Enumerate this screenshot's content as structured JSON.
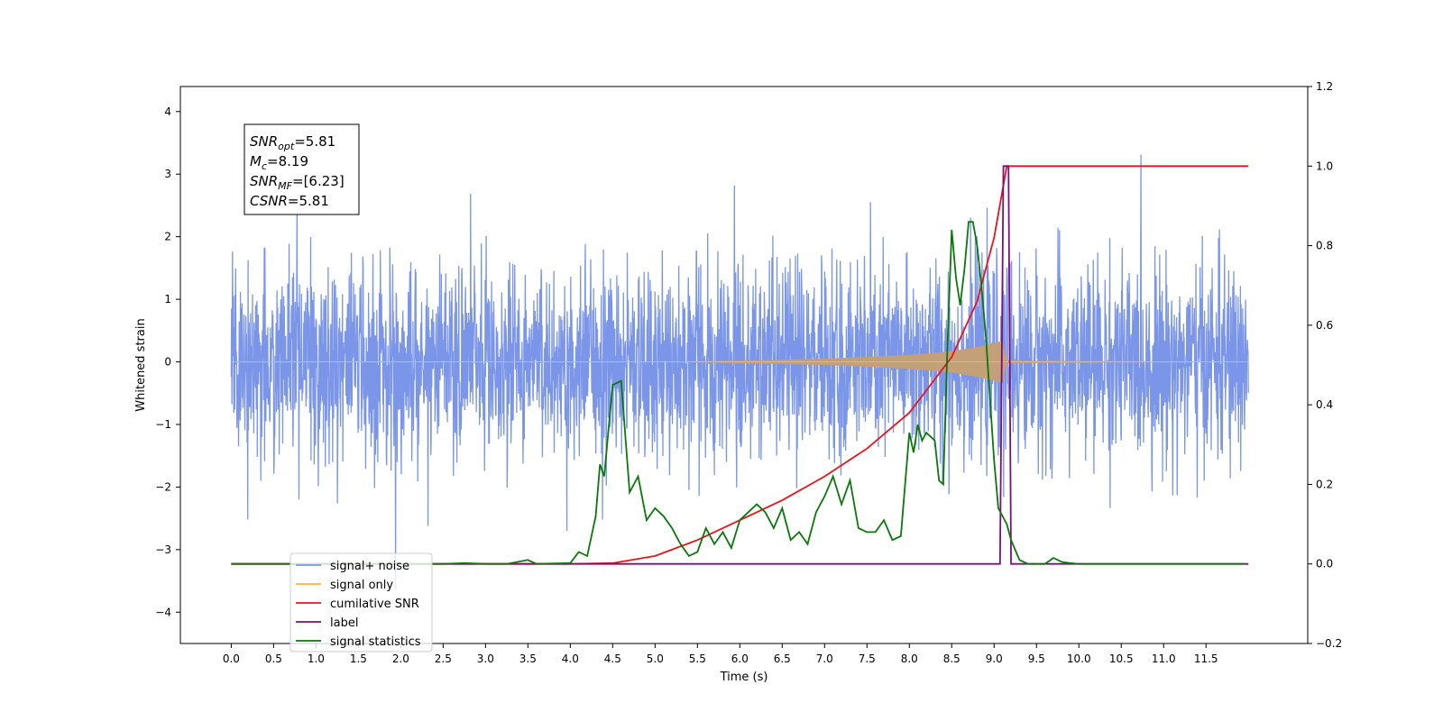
{
  "chart_data": {
    "type": "line",
    "xlabel": "Time (s)",
    "ylabel": "Whitened strain",
    "xlim": [
      -0.6,
      12.7
    ],
    "ylim": [
      -4.5,
      4.4
    ],
    "ylim_right": [
      -0.2,
      1.2
    ],
    "x_ticks": [
      0.0,
      0.5,
      1.0,
      1.5,
      2.0,
      2.5,
      3.0,
      3.5,
      4.0,
      4.5,
      5.0,
      5.5,
      6.0,
      6.5,
      7.0,
      7.5,
      8.0,
      8.5,
      9.0,
      9.5,
      10.0,
      10.5,
      11.0,
      11.5
    ],
    "x_tick_labels": [
      "0.0",
      "0.5",
      "1.0",
      "1.5",
      "2.0",
      "2.5",
      "3.0",
      "3.5",
      "4.0",
      "4.5",
      "5.0",
      "5.5",
      "6.0",
      "6.5",
      "7.0",
      "7.5",
      "8.0",
      "8.5",
      "9.0",
      "9.5",
      "10.0",
      "10.5",
      "11.0",
      "11.5"
    ],
    "y_ticks": [
      -4,
      -3,
      -2,
      -1,
      0,
      1,
      2,
      3,
      4
    ],
    "y_tick_labels": [
      "−4",
      "−3",
      "−2",
      "−1",
      "0",
      "1",
      "2",
      "3",
      "4"
    ],
    "y_right_ticks": [
      -0.2,
      0.0,
      0.2,
      0.4,
      0.6,
      0.8,
      1.0,
      1.2
    ],
    "y_right_tick_labels": [
      "−0.2",
      "0.0",
      "0.2",
      "0.4",
      "0.6",
      "0.8",
      "1.0",
      "1.2"
    ],
    "grid": false,
    "legend": "bottom-left",
    "annotation_box": {
      "lines": [
        {
          "symbol": "SNR",
          "sub": "opt",
          "value": "=5.81"
        },
        {
          "symbol": "M",
          "sub": "c",
          "value": "=8.19"
        },
        {
          "symbol": "SNR",
          "sub": "MF",
          "value": "=[6.23]"
        },
        {
          "symbol": "CSNR",
          "sub": "",
          "value": "=5.81"
        }
      ]
    },
    "series": [
      {
        "name": "signal+ noise",
        "axis": "left",
        "color": "#7b96e8",
        "style": "noise",
        "x_range": [
          0.0,
          12.0
        ],
        "typical_amplitude": 1.7,
        "max_value": 4.0,
        "min_value": -4.1
      },
      {
        "name": "signal only",
        "axis": "left",
        "color": "#ffb347",
        "fill_color": "#c4a078",
        "style": "chirp",
        "x_range": [
          0.0,
          12.0
        ],
        "envelope": {
          "x": [
            0.0,
            5.0,
            6.0,
            7.0,
            7.5,
            8.0,
            8.5,
            8.8,
            9.0,
            9.1,
            9.15,
            12.0
          ],
          "amplitude": [
            0.0,
            0.0,
            0.02,
            0.05,
            0.08,
            0.11,
            0.17,
            0.24,
            0.3,
            0.34,
            0.02,
            0.0
          ]
        }
      },
      {
        "name": "cumilative SNR",
        "axis": "right",
        "color": "#e8141b",
        "x": [
          0.0,
          4.0,
          4.5,
          5.0,
          5.5,
          6.0,
          6.5,
          7.0,
          7.5,
          8.0,
          8.5,
          8.8,
          9.0,
          9.1,
          9.15,
          12.0
        ],
        "y": [
          0.0,
          0.0,
          0.002,
          0.02,
          0.06,
          0.11,
          0.16,
          0.22,
          0.29,
          0.38,
          0.52,
          0.66,
          0.82,
          0.94,
          1.0,
          1.0
        ]
      },
      {
        "name": "label",
        "axis": "right",
        "color": "#7a0f7a",
        "x": [
          0.0,
          9.07,
          9.11,
          9.17,
          9.2,
          12.0
        ],
        "y": [
          0.0,
          0.0,
          1.0,
          1.0,
          0.0,
          0.0
        ]
      },
      {
        "name": "signal statistics",
        "axis": "right",
        "color": "#0a780a",
        "x": [
          0.0,
          0.5,
          1.0,
          1.5,
          2.0,
          2.5,
          2.75,
          3.0,
          3.25,
          3.5,
          3.6,
          4.0,
          4.1,
          4.2,
          4.3,
          4.35,
          4.4,
          4.5,
          4.6,
          4.7,
          4.8,
          4.9,
          5.0,
          5.1,
          5.2,
          5.3,
          5.4,
          5.5,
          5.6,
          5.7,
          5.8,
          5.9,
          6.0,
          6.1,
          6.2,
          6.3,
          6.4,
          6.5,
          6.6,
          6.7,
          6.8,
          6.9,
          7.0,
          7.1,
          7.2,
          7.3,
          7.4,
          7.5,
          7.6,
          7.7,
          7.8,
          7.9,
          8.0,
          8.05,
          8.1,
          8.15,
          8.2,
          8.25,
          8.3,
          8.35,
          8.4,
          8.45,
          8.5,
          8.55,
          8.6,
          8.65,
          8.7,
          8.75,
          8.8,
          8.85,
          8.9,
          8.95,
          9.0,
          9.05,
          9.1,
          9.15,
          9.2,
          9.3,
          9.4,
          9.5,
          9.6,
          9.7,
          9.8,
          9.9,
          10.0,
          10.5,
          11.0,
          11.5,
          11.95
        ],
        "y": [
          0.0,
          0.0,
          0.0,
          0.0,
          0.0,
          0.0,
          0.002,
          0.0,
          0.0,
          0.01,
          0.0,
          0.002,
          0.03,
          0.02,
          0.12,
          0.25,
          0.22,
          0.45,
          0.46,
          0.18,
          0.22,
          0.11,
          0.14,
          0.12,
          0.09,
          0.05,
          0.02,
          0.03,
          0.09,
          0.05,
          0.08,
          0.04,
          0.11,
          0.13,
          0.15,
          0.13,
          0.09,
          0.14,
          0.06,
          0.08,
          0.05,
          0.13,
          0.17,
          0.22,
          0.15,
          0.21,
          0.09,
          0.08,
          0.08,
          0.11,
          0.06,
          0.07,
          0.33,
          0.28,
          0.35,
          0.31,
          0.33,
          0.32,
          0.31,
          0.21,
          0.2,
          0.55,
          0.84,
          0.72,
          0.65,
          0.74,
          0.86,
          0.86,
          0.8,
          0.7,
          0.58,
          0.42,
          0.26,
          0.14,
          0.12,
          0.1,
          0.06,
          0.01,
          0.0,
          0.0,
          0.0,
          0.015,
          0.005,
          0.002,
          0.0,
          0.0,
          0.0,
          0.0,
          0.0
        ]
      }
    ]
  }
}
